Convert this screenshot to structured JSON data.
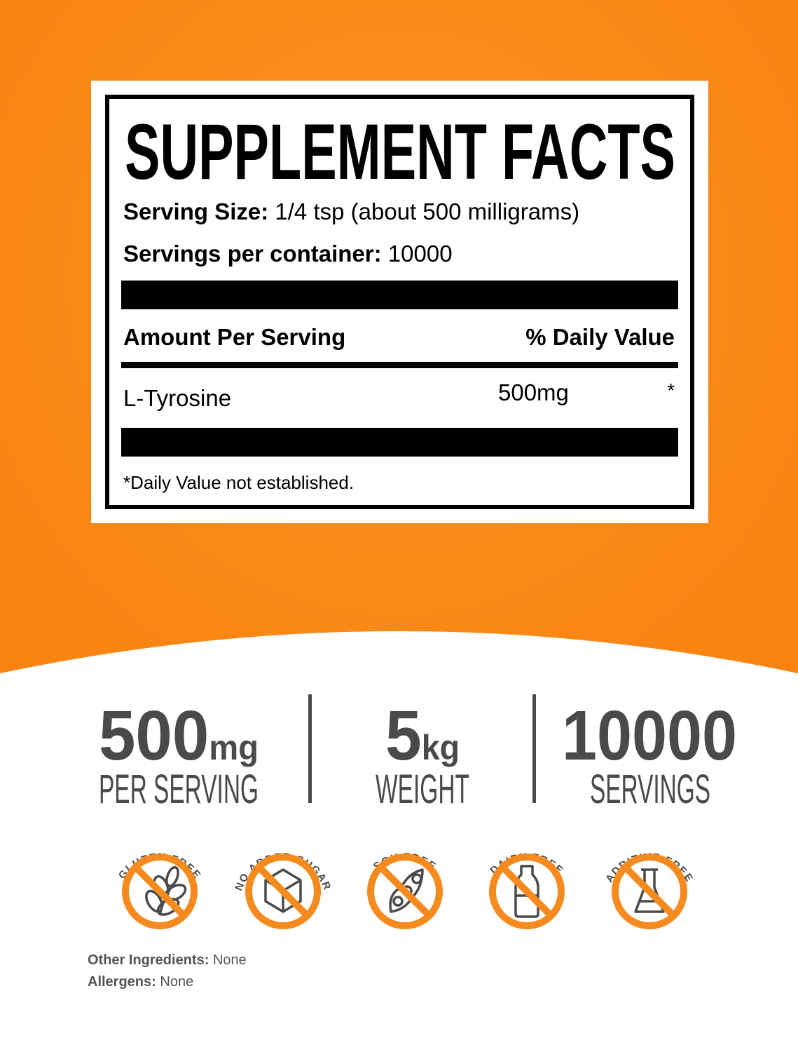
{
  "label": {
    "title": "SUPPLEMENT FACTS",
    "serving_size_label": "Serving Size:",
    "serving_size_value": "1/4 tsp (about 500 milligrams)",
    "servings_label": "Servings per container:",
    "servings_value": "10000",
    "amount_header": "Amount Per Serving",
    "dv_header": "% Daily Value",
    "rows": [
      {
        "name": "L-Tyrosine",
        "amount": "500mg",
        "dv": "*"
      }
    ],
    "footnote": "*Daily Value not established."
  },
  "stats": [
    {
      "value": "500",
      "unit": "mg",
      "caption": "PER SERVING"
    },
    {
      "value": "5",
      "unit": "kg",
      "caption": "WEIGHT"
    },
    {
      "value": "10000",
      "unit": "",
      "caption": "SERVINGS"
    }
  ],
  "badges": [
    {
      "text": "GLUTEN FREE",
      "icon": "wheat-icon"
    },
    {
      "text": "NO ADDED SUGAR",
      "icon": "sugar-cube-icon"
    },
    {
      "text": "SOY FREE",
      "icon": "soybean-icon"
    },
    {
      "text": "DAIRY FREE",
      "icon": "milk-bottle-icon"
    },
    {
      "text": "ADDITIVE FREE",
      "icon": "flask-icon"
    }
  ],
  "other_ingredients_label": "Other Ingredients:",
  "other_ingredients_value": "None",
  "allergens_label": "Allergens:",
  "allergens_value": "None",
  "colors": {
    "brand_orange": "#F7810F",
    "badge_orange": "#F58A1F",
    "text_gray": "#4A4A4A"
  }
}
